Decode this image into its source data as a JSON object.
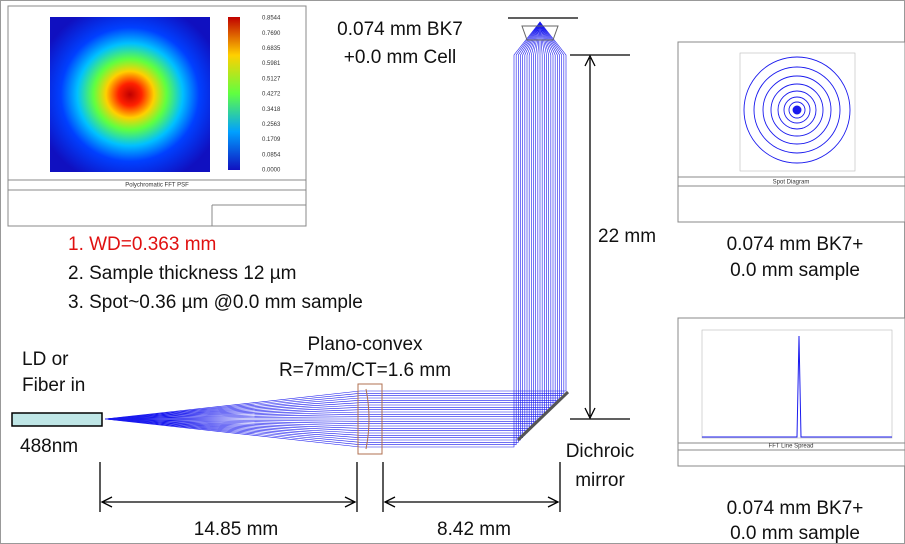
{
  "psf_panel": {
    "title": "Polychromatic FFT PSF",
    "scale": [
      "0.8544",
      "0.7690",
      "0.6835",
      "0.5981",
      "0.5127",
      "0.4272",
      "0.3418",
      "0.2563",
      "0.1709",
      "0.0854",
      "0.0000"
    ]
  },
  "spot_panel": {
    "title": "Spot Diagram"
  },
  "lsf_panel": {
    "title": "FFT Line Spread"
  },
  "window_label": [
    "0.074 mm BK7",
    "+0.0 mm Cell"
  ],
  "notes": [
    "1. WD=0.363 mm",
    "2. Sample thickness 12 µm",
    "3. Spot~0.36 µm @0.0 mm sample"
  ],
  "vertical_distance": "22 mm",
  "spot_caption": [
    "0.074 mm  BK7+",
    "0.0 mm sample"
  ],
  "lsf_caption": [
    "0.074 mm  BK7+",
    "0.0 mm sample"
  ],
  "source_label": [
    "LD or",
    "Fiber in"
  ],
  "wavelength": "488nm",
  "lens_label": [
    "Plano-convex",
    "R=7mm/CT=1.6 mm"
  ],
  "mirror_label": [
    "Dichroic",
    "mirror"
  ],
  "distance_1": "14.85 mm",
  "distance_2": "8.42 mm"
}
